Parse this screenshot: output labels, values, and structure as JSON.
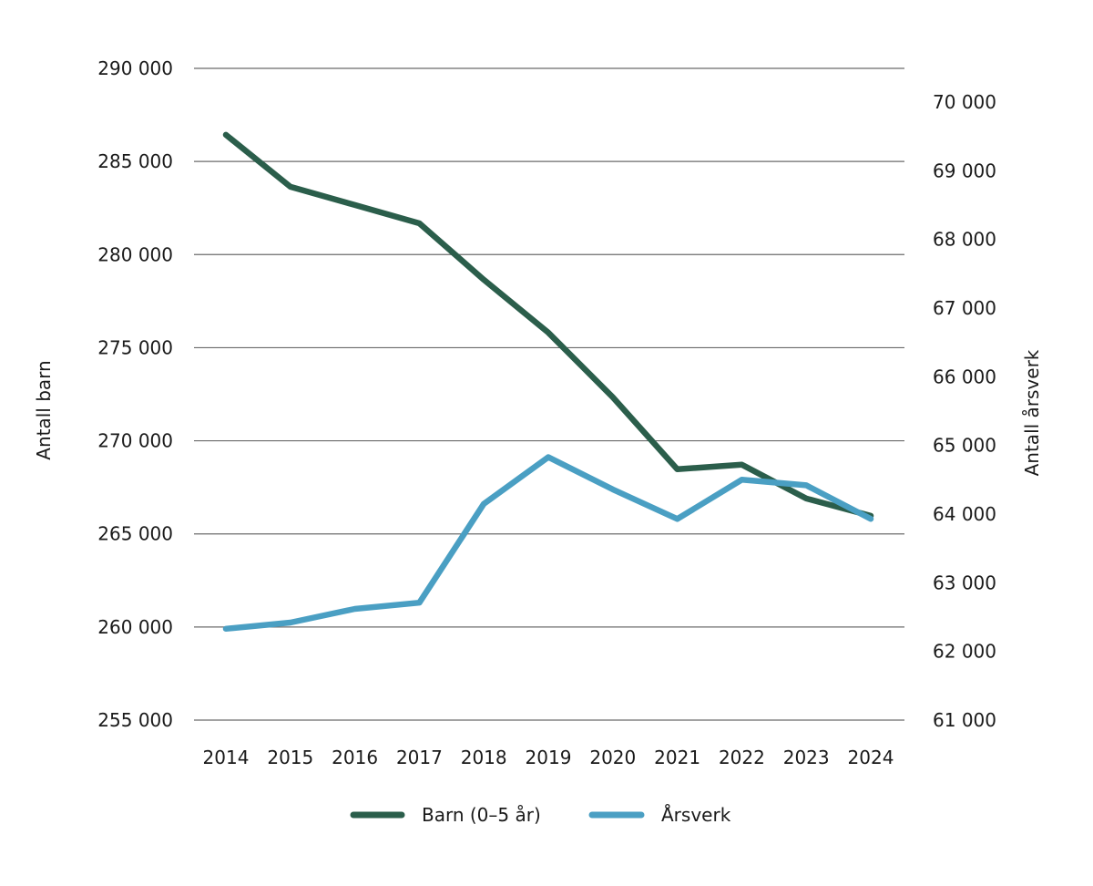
{
  "chart_data": {
    "type": "line",
    "title": "",
    "xlabel": "",
    "ylabel": "Antall barn",
    "y2label": "Antall årsverk",
    "x": [
      "2014",
      "2015",
      "2016",
      "2017",
      "2018",
      "2019",
      "2020",
      "2021",
      "2022",
      "2023",
      "2024"
    ],
    "ylim": [
      255000,
      290000
    ],
    "y2lim": [
      61000,
      70000
    ],
    "yticks": [
      255000,
      260000,
      265000,
      270000,
      275000,
      280000,
      285000,
      290000
    ],
    "ytick_labels": [
      "255 000",
      "260 000",
      "265 000",
      "270 000",
      "275 000",
      "280 000",
      "285 000",
      "290 000"
    ],
    "y2ticks": [
      61000,
      62000,
      63000,
      64000,
      65000,
      66000,
      67000,
      68000,
      69000,
      70000
    ],
    "y2tick_labels": [
      "61 000",
      "62 000",
      "63 000",
      "64 000",
      "65 000",
      "66 000",
      "67 000",
      "68 000",
      "69 000",
      "70 000"
    ],
    "grid": true,
    "legend_position": "bottom-center",
    "series": [
      {
        "name": "Barn (0–5 år)",
        "axis": "left",
        "color": "#2b5e4b",
        "values": [
          286430,
          283640,
          282660,
          281680,
          278650,
          275810,
          272340,
          268470,
          268720,
          266900,
          265970
        ]
      },
      {
        "name": "Årsverk",
        "axis": "right",
        "color": "#4a9fc3",
        "values": [
          62330,
          62420,
          62620,
          62710,
          64150,
          64830,
          64360,
          63930,
          64500,
          64420,
          63930
        ]
      }
    ]
  }
}
